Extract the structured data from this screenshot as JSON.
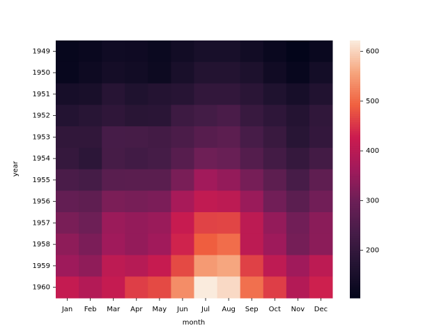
{
  "chart_data": {
    "type": "heatmap",
    "x_label": "month",
    "y_label": "year",
    "categories": [
      "Jan",
      "Feb",
      "Mar",
      "Apr",
      "May",
      "Jun",
      "Jul",
      "Aug",
      "Sep",
      "Oct",
      "Nov",
      "Dec"
    ],
    "rows": [
      "1949",
      "1950",
      "1951",
      "1952",
      "1953",
      "1954",
      "1955",
      "1956",
      "1957",
      "1958",
      "1959",
      "1960"
    ],
    "values": [
      [
        112,
        118,
        132,
        129,
        121,
        135,
        148,
        148,
        136,
        119,
        104,
        118
      ],
      [
        115,
        126,
        141,
        135,
        125,
        149,
        170,
        170,
        158,
        133,
        114,
        140
      ],
      [
        145,
        150,
        178,
        163,
        172,
        178,
        199,
        199,
        184,
        162,
        146,
        166
      ],
      [
        171,
        180,
        193,
        181,
        183,
        218,
        230,
        242,
        209,
        191,
        172,
        194
      ],
      [
        196,
        196,
        236,
        235,
        229,
        243,
        264,
        272,
        237,
        211,
        180,
        201
      ],
      [
        204,
        188,
        235,
        227,
        234,
        264,
        302,
        293,
        259,
        229,
        203,
        229
      ],
      [
        242,
        233,
        267,
        269,
        270,
        315,
        364,
        347,
        312,
        274,
        237,
        278
      ],
      [
        284,
        277,
        317,
        313,
        318,
        374,
        413,
        405,
        355,
        306,
        271,
        306
      ],
      [
        315,
        301,
        356,
        348,
        355,
        422,
        465,
        467,
        404,
        347,
        305,
        336
      ],
      [
        340,
        318,
        362,
        348,
        363,
        435,
        491,
        505,
        404,
        359,
        310,
        337
      ],
      [
        360,
        342,
        406,
        396,
        420,
        472,
        548,
        559,
        463,
        407,
        362,
        405
      ],
      [
        417,
        391,
        419,
        461,
        472,
        535,
        622,
        606,
        508,
        461,
        390,
        432
      ]
    ],
    "clim": [
      104,
      622
    ],
    "cticks": [
      200,
      300,
      400,
      500,
      600
    ],
    "colormap": [
      "#03051a",
      "#221331",
      "#451c47",
      "#6b1f56",
      "#a11a5b",
      "#cb1b4f",
      "#f0603f",
      "#f6a47c",
      "#faebdd"
    ]
  }
}
